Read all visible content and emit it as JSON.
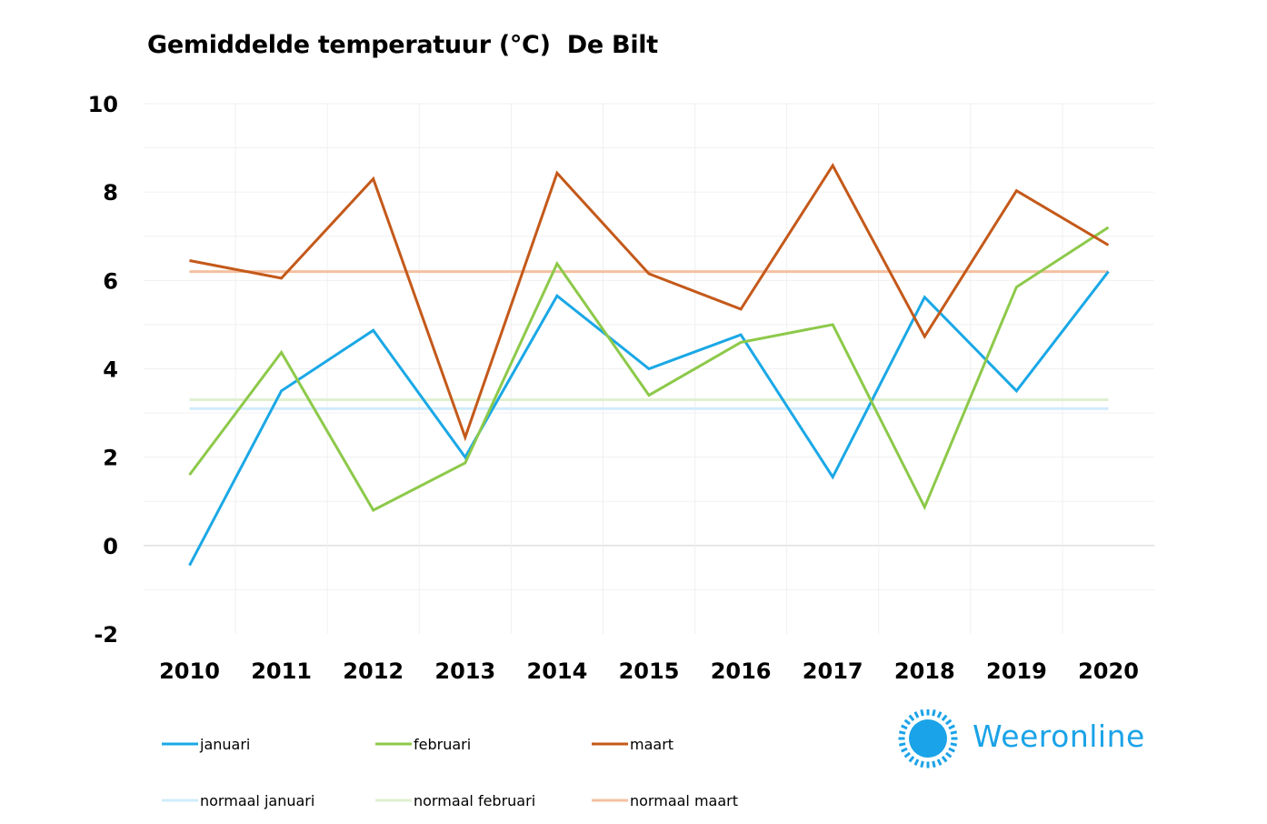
{
  "chart_data": {
    "type": "line",
    "title": "Gemiddelde temperatuur (°C)  De Bilt",
    "xlabel": "",
    "ylabel": "",
    "ylim": [
      -2,
      10
    ],
    "yticks": [
      "10",
      "8",
      "6",
      "4",
      "2",
      "0",
      "-2"
    ],
    "yticks_values": [
      10,
      8,
      6,
      4,
      2,
      0,
      -2
    ],
    "categories": [
      "2010",
      "2011",
      "2012",
      "2013",
      "2014",
      "2015",
      "2016",
      "2017",
      "2018",
      "2019",
      "2020"
    ],
    "series": [
      {
        "name": "januari",
        "color": "#1aa8e6",
        "values": [
          -0.45,
          3.5,
          4.87,
          2.0,
          5.65,
          4.0,
          4.77,
          1.55,
          5.62,
          3.5,
          6.2
        ]
      },
      {
        "name": "februari",
        "color": "#8dc94a",
        "values": [
          1.6,
          4.37,
          0.8,
          1.87,
          6.38,
          3.4,
          4.6,
          5.0,
          0.87,
          5.85,
          7.2
        ]
      },
      {
        "name": "maart",
        "color": "#c4591a",
        "values": [
          6.45,
          6.05,
          8.3,
          2.45,
          8.43,
          6.15,
          5.35,
          8.6,
          4.73,
          8.03,
          6.8
        ]
      },
      {
        "name": "normaal januari",
        "color": "#d1ecfb",
        "values": [
          3.1,
          3.1,
          3.1,
          3.1,
          3.1,
          3.1,
          3.1,
          3.1,
          3.1,
          3.1,
          3.1
        ]
      },
      {
        "name": "normaal februari",
        "color": "#e0f0d1",
        "values": [
          3.3,
          3.3,
          3.3,
          3.3,
          3.3,
          3.3,
          3.3,
          3.3,
          3.3,
          3.3,
          3.3
        ]
      },
      {
        "name": "normaal maart",
        "color": "#f4c0a0",
        "values": [
          6.2,
          6.2,
          6.2,
          6.2,
          6.2,
          6.2,
          6.2,
          6.2,
          6.2,
          6.2,
          6.2
        ]
      }
    ],
    "legend_position": "bottom",
    "grid": true
  },
  "brand": {
    "name": "Weeronline",
    "color": "#1aa3e8"
  }
}
